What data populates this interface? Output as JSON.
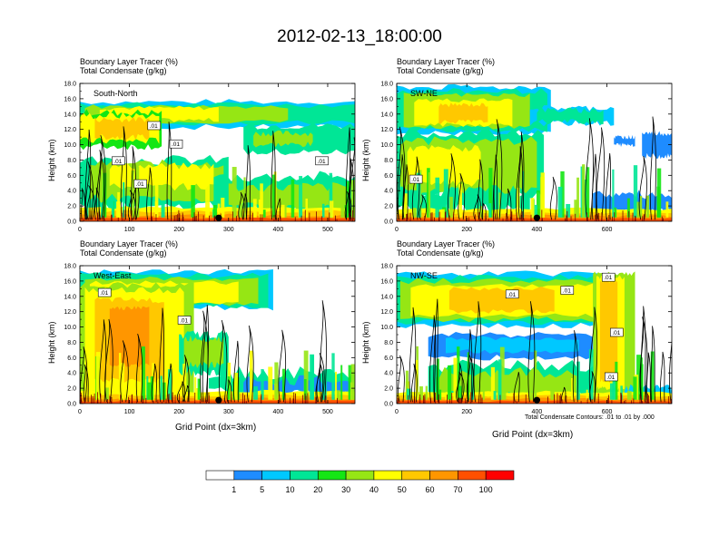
{
  "title": "2012-02-13_18:00:00",
  "var_line1": "Boundary Layer Tracer   (%)",
  "var_line2": "Total Condensate   (g/kg)",
  "xlabel": "Grid Point (dx=3km)",
  "ylabel": "Height (km)",
  "contour_note": "Total Condensate Contours: .01 to .01 by .000",
  "colorbar": {
    "levels": [
      "1",
      "5",
      "10",
      "20",
      "30",
      "40",
      "50",
      "60",
      "70",
      "100"
    ],
    "colors": [
      "#ffffff",
      "#1e8cff",
      "#00c8ff",
      "#00e696",
      "#14e614",
      "#96e614",
      "#ffff00",
      "#ffc800",
      "#ff9600",
      "#ff5000",
      "#ff0000"
    ]
  },
  "chart_data": [
    {
      "type": "heatmap",
      "name": "South-North",
      "xlim": [
        0,
        555
      ],
      "xticks": [
        "0",
        "100",
        "200",
        "300",
        "400",
        "500"
      ],
      "xtick_values": [
        0,
        100,
        200,
        300,
        400,
        500
      ],
      "ylim": [
        0,
        18
      ],
      "yticks": [
        "0.0",
        "2.0",
        "4.0",
        "6.0",
        "8.0",
        "10.0",
        "12.0",
        "14.0",
        "16.0",
        "18.0"
      ],
      "contour_labels": [
        ".01",
        ".01",
        ".01",
        ".01",
        ".01"
      ],
      "marker_x": 280
    },
    {
      "type": "heatmap",
      "name": "SW-NE",
      "xlim": [
        0,
        785
      ],
      "xticks": [
        "0",
        "200",
        "400",
        "600"
      ],
      "xtick_values": [
        0,
        200,
        400,
        600
      ],
      "ylim": [
        0,
        18
      ],
      "yticks": [
        "0.0",
        "2.0",
        "4.0",
        "6.0",
        "8.0",
        "10.0",
        "12.0",
        "14.0",
        "16.0",
        "18.0"
      ],
      "contour_labels": [
        ".01"
      ],
      "marker_x": 400
    },
    {
      "type": "heatmap",
      "name": "West-East",
      "xlim": [
        0,
        555
      ],
      "xticks": [
        "0",
        "100",
        "200",
        "300",
        "400",
        "500"
      ],
      "xtick_values": [
        0,
        100,
        200,
        300,
        400,
        500
      ],
      "ylim": [
        0,
        18
      ],
      "yticks": [
        "0.0",
        "2.0",
        "4.0",
        "6.0",
        "8.0",
        "10.0",
        "12.0",
        "14.0",
        "16.0",
        "18.0"
      ],
      "contour_labels": [
        ".01",
        ".01"
      ],
      "marker_x": 280
    },
    {
      "type": "heatmap",
      "name": "NW-SE",
      "xlim": [
        0,
        785
      ],
      "xticks": [
        "0",
        "200",
        "400",
        "600"
      ],
      "xtick_values": [
        0,
        200,
        400,
        600
      ],
      "ylim": [
        0,
        18
      ],
      "yticks": [
        "0.0",
        "2.0",
        "4.0",
        "6.0",
        "8.0",
        "10.0",
        "12.0",
        "14.0",
        "16.0",
        "18.0"
      ],
      "contour_labels": [
        ".01",
        ".01",
        ".01",
        ".01",
        ".01"
      ],
      "marker_x": 400
    }
  ]
}
